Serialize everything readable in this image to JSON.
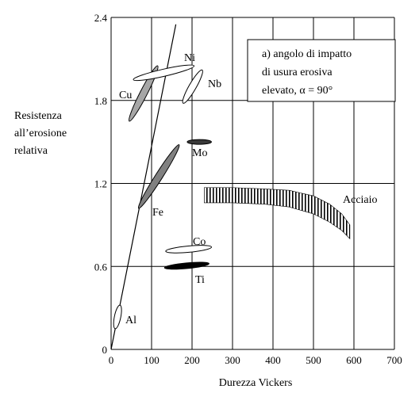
{
  "chart_data": {
    "type": "scatter",
    "title": "",
    "xlabel": "Durezza Vickers",
    "ylabel_lines": [
      "Resistenza",
      "all’erosione",
      "relativa"
    ],
    "xlim": [
      0,
      700
    ],
    "ylim": [
      0,
      2.4
    ],
    "x_ticks": [
      0,
      100,
      200,
      300,
      400,
      500,
      600,
      700
    ],
    "y_ticks": [
      0,
      0.6,
      1.2,
      1.8,
      2.4
    ],
    "x_tick_labels": [
      "0",
      "100",
      "200",
      "300",
      "400",
      "500",
      "600",
      "700"
    ],
    "y_tick_labels": [
      "0",
      "0.6",
      "1.2",
      "1.8",
      "2.4"
    ],
    "grid": true,
    "annotation_lines": [
      "a) angolo di impatto",
      "di usura erosiva",
      "elevato, α = 90°"
    ],
    "trend_line": {
      "x": [
        0,
        160
      ],
      "y": [
        0,
        2.35
      ]
    },
    "materials": [
      {
        "label": "Al",
        "x": [
          10,
          22
        ],
        "y": [
          0.15,
          0.32
        ],
        "fill": "#ffffff",
        "width": 8
      },
      {
        "label": "Cu",
        "x": [
          45,
          115
        ],
        "y": [
          1.65,
          2.05
        ],
        "fill": "#a6a6a6",
        "width": 9
      },
      {
        "label": "Ni",
        "x": [
          55,
          205
        ],
        "y": [
          1.95,
          2.05
        ],
        "fill": "#ffffff",
        "width": 9
      },
      {
        "label": "Nb",
        "x": [
          178,
          225
        ],
        "y": [
          1.78,
          2.02
        ],
        "fill": "#ffffff",
        "width": 9
      },
      {
        "label": "Fe",
        "x": [
          68,
          168
        ],
        "y": [
          1.02,
          1.48
        ],
        "fill": "#808080",
        "width": 9
      },
      {
        "label": "Mo",
        "x": [
          188,
          248
        ],
        "y": [
          1.5,
          1.5
        ],
        "fill": "#3a3a3a",
        "width": 6
      },
      {
        "label": "Co",
        "x": [
          135,
          248
        ],
        "y": [
          0.71,
          0.74
        ],
        "fill": "#ffffff",
        "width": 8
      },
      {
        "label": "Ti",
        "x": [
          132,
          242
        ],
        "y": [
          0.59,
          0.62
        ],
        "fill": "#000000",
        "width": 7
      }
    ],
    "steel": {
      "label": "Acciaio",
      "x": [
        230,
        300,
        380,
        440,
        500,
        540,
        570,
        590
      ],
      "y_top": [
        1.17,
        1.17,
        1.16,
        1.15,
        1.11,
        1.05,
        0.98,
        0.9
      ],
      "y_bottom": [
        1.06,
        1.06,
        1.05,
        1.03,
        0.98,
        0.92,
        0.86,
        0.8
      ]
    }
  }
}
